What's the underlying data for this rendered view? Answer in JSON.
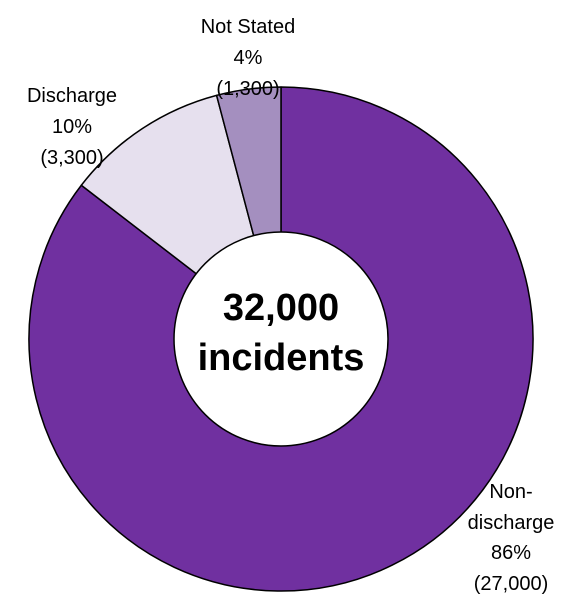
{
  "chart_data": {
    "type": "pie",
    "variant": "donut",
    "center_label": [
      "32,000",
      "incidents"
    ],
    "slices": [
      {
        "label": [
          "Non-",
          "discharge"
        ],
        "percent": "86%",
        "count": "(27,000)",
        "value": 27000,
        "color": "#7030a0"
      },
      {
        "label": [
          "Discharge"
        ],
        "percent": "10%",
        "count": "(3,300)",
        "value": 3300,
        "color": "#e6e0ee"
      },
      {
        "label": [
          "Not Stated"
        ],
        "percent": "4%",
        "count": "(1,300)",
        "value": 1300,
        "color": "#a48fbf"
      }
    ]
  }
}
